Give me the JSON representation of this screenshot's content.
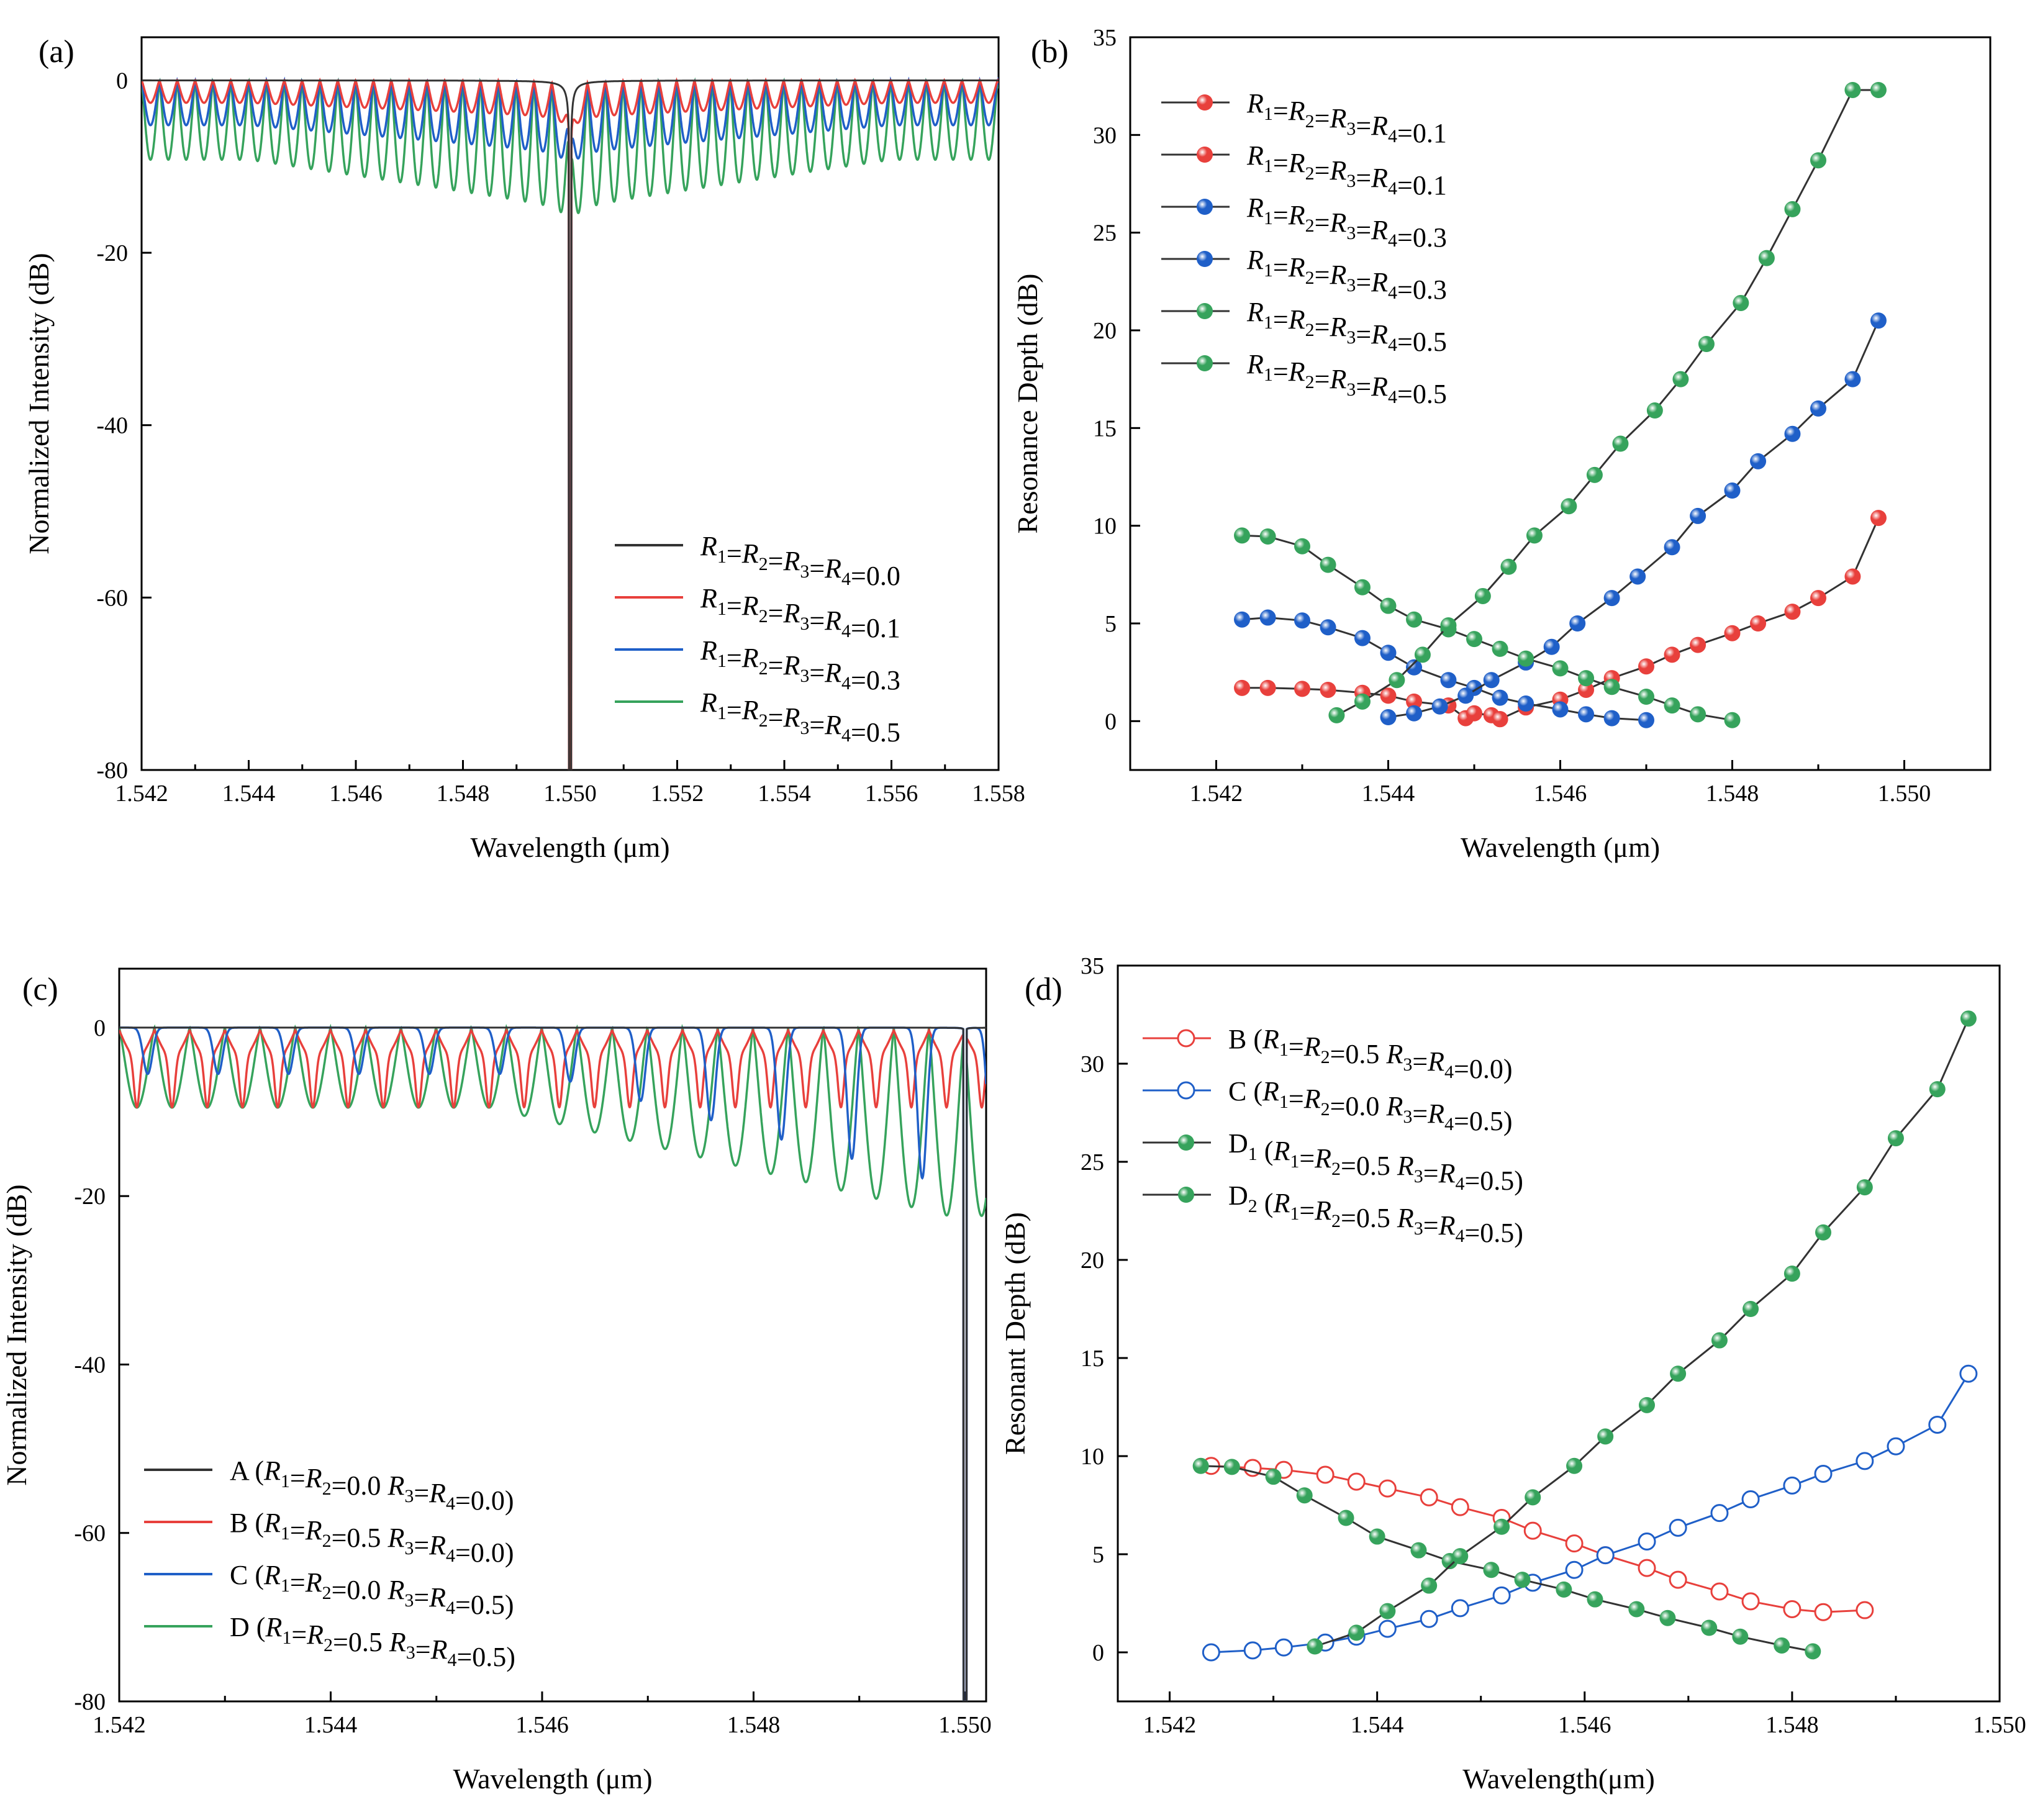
{
  "chart_data": [
    {
      "panel": "(a)",
      "type": "line",
      "xlabel": "Wavelength (μm)",
      "ylabel": "Normalized Intensity (dB)",
      "xlim": [
        1.542,
        1.558
      ],
      "ylim": [
        -80,
        5
      ],
      "xticks": [
        1.542,
        1.544,
        1.546,
        1.548,
        1.55,
        1.552,
        1.554,
        1.556,
        1.558
      ],
      "xtick_labels": [
        "1.542",
        "1.544",
        "1.546",
        "1.548",
        "1.550",
        "1.552",
        "1.554",
        "1.556",
        "1.558"
      ],
      "yticks": [
        0,
        -20,
        -40,
        -60,
        -80
      ],
      "ytick_labels": [
        "0",
        "-20",
        "-40",
        "-60",
        "-80"
      ],
      "legend_position": "lower-right",
      "center": 1.55,
      "series": [
        {
          "name": "R1=R2=R3=R4=0.0",
          "R": 0.0,
          "color": "#333333",
          "period": 0.0
        },
        {
          "name": "R1=R2=R3=R4=0.1",
          "R": 0.1,
          "color": "#e8403c",
          "period": 0.000333
        },
        {
          "name": "R1=R2=R3=R4=0.3",
          "R": 0.3,
          "color": "#1f5fc8",
          "period": 0.000333
        },
        {
          "name": "R1=R2=R3=R4=0.5",
          "R": 0.5,
          "color": "#36a35c",
          "period": 0.000333
        }
      ]
    },
    {
      "panel": "(b)",
      "type": "scatter",
      "xlabel": "Wavelength (μm)",
      "ylabel": "Resonance Depth (dB)",
      "xlim": [
        1.541,
        1.551
      ],
      "ylim": [
        -2.5,
        35
      ],
      "xticks": [
        1.542,
        1.544,
        1.546,
        1.548,
        1.55
      ],
      "xtick_labels": [
        "1.542",
        "1.544",
        "1.546",
        "1.548",
        "1.550"
      ],
      "yticks": [
        0,
        5,
        10,
        15,
        20,
        25,
        30,
        35
      ],
      "ytick_labels": [
        "0",
        "5",
        "10",
        "15",
        "20",
        "25",
        "30",
        "35"
      ],
      "legend_position": "top-left",
      "series": [
        {
          "name": "R1=R2=R3=R4=0.1",
          "color": "#e8403c",
          "x": [
            1.5423,
            1.5426,
            1.543,
            1.5433,
            1.5437,
            1.544,
            1.5443,
            1.5447,
            1.5449,
            1.545,
            1.5452,
            1.5453
          ],
          "y": [
            1.7,
            1.7,
            1.65,
            1.6,
            1.45,
            1.3,
            1.0,
            0.8,
            0.15,
            0.4,
            0.3,
            0.1
          ]
        },
        {
          "name": "R1=R2=R3=R4=0.1",
          "color": "#e8403c",
          "x": [
            1.5453,
            1.5456,
            1.546,
            1.5463,
            1.5466,
            1.547,
            1.5473,
            1.5476,
            1.548,
            1.5483,
            1.5487,
            1.549,
            1.5494,
            1.5497
          ],
          "y": [
            0.1,
            0.7,
            1.1,
            1.6,
            2.2,
            2.8,
            3.4,
            3.9,
            4.5,
            5.0,
            5.6,
            6.3,
            7.4,
            10.4
          ]
        },
        {
          "name": "R1=R2=R3=R4=0.3",
          "color": "#1f5fc8",
          "x": [
            1.5423,
            1.5426,
            1.543,
            1.5433,
            1.5437,
            1.544,
            1.5443,
            1.5447,
            1.545,
            1.5453,
            1.5456,
            1.546,
            1.5463,
            1.5466,
            1.547
          ],
          "y": [
            5.2,
            5.3,
            5.15,
            4.8,
            4.25,
            3.5,
            2.75,
            2.1,
            1.7,
            1.2,
            0.9,
            0.6,
            0.35,
            0.15,
            0.05
          ]
        },
        {
          "name": "R1=R2=R3=R4=0.3",
          "color": "#1f5fc8",
          "x": [
            1.544,
            1.5443,
            1.5446,
            1.5449,
            1.5452,
            1.5456,
            1.5459,
            1.5462,
            1.5466,
            1.5469,
            1.5473,
            1.5476,
            1.548,
            1.5483,
            1.5487,
            1.549,
            1.5494,
            1.5497
          ],
          "y": [
            0.2,
            0.4,
            0.75,
            1.3,
            2.1,
            3.0,
            3.8,
            5.0,
            6.3,
            7.4,
            8.9,
            10.5,
            11.8,
            13.3,
            14.7,
            16.0,
            17.5,
            20.5
          ]
        },
        {
          "name": "R1=R2=R3=R4=0.5",
          "color": "#36a35c",
          "x": [
            1.5423,
            1.5426,
            1.543,
            1.5433,
            1.5437,
            1.544,
            1.5443,
            1.5447,
            1.545,
            1.5453,
            1.5456,
            1.546,
            1.5463,
            1.5466,
            1.547,
            1.5473,
            1.5476,
            1.548
          ],
          "y": [
            9.5,
            9.45,
            8.95,
            8.0,
            6.85,
            5.9,
            5.2,
            4.7,
            4.2,
            3.7,
            3.2,
            2.7,
            2.2,
            1.75,
            1.25,
            0.8,
            0.35,
            0.05
          ]
        },
        {
          "name": "R1=R2=R3=R4=0.5",
          "color": "#36a35c",
          "x": [
            1.5434,
            1.5437,
            1.5441,
            1.5444,
            1.5447,
            1.5451,
            1.5454,
            1.5457,
            1.5461,
            1.5464,
            1.5467,
            1.5471,
            1.5474,
            1.5477,
            1.5481,
            1.5484,
            1.5487,
            1.549,
            1.5494,
            1.5497
          ],
          "y": [
            0.3,
            1.0,
            2.1,
            3.4,
            4.9,
            6.4,
            7.9,
            9.5,
            11.0,
            12.6,
            14.2,
            15.9,
            17.5,
            19.3,
            21.4,
            23.7,
            26.2,
            28.7,
            32.3,
            32.3
          ]
        }
      ]
    },
    {
      "panel": "(c)",
      "type": "line",
      "xlabel": "Wavelength (μm)",
      "ylabel": "Normalized Intensity (dB)",
      "xlim": [
        1.542,
        1.5502
      ],
      "ylim": [
        -80,
        7
      ],
      "xticks": [
        1.542,
        1.544,
        1.546,
        1.548,
        1.55
      ],
      "xtick_labels": [
        "1.542",
        "1.544",
        "1.546",
        "1.548",
        "1.550"
      ],
      "yticks": [
        0,
        -20,
        -40,
        -60,
        -80
      ],
      "ytick_labels": [
        "0",
        "-20",
        "-40",
        "-60",
        "-80"
      ],
      "legend_position": "lower-left",
      "center": 1.55,
      "series": [
        {
          "name": "A (R1=R2=0.0 R3=R4=0.0)",
          "color": "#333333"
        },
        {
          "name": "B (R1=R2=0.5 R3=R4=0.0)",
          "color": "#e8403c"
        },
        {
          "name": "C (R1=R2=0.0 R3=R4=0.5)",
          "color": "#1f5fc8"
        },
        {
          "name": "D (R1=R2=0.5 R3=R4=0.5)",
          "color": "#36a35c"
        }
      ]
    },
    {
      "panel": "(d)",
      "type": "scatter",
      "xlabel": "Wavelength(μm)",
      "ylabel": "Resonant Depth (dB)",
      "xlim": [
        1.5415,
        1.55
      ],
      "ylim": [
        -2.5,
        35
      ],
      "xticks": [
        1.542,
        1.544,
        1.546,
        1.548,
        1.55
      ],
      "xtick_labels": [
        "1.542",
        "1.544",
        "1.546",
        "1.548",
        "1.550"
      ],
      "yticks": [
        0,
        5,
        10,
        15,
        20,
        25,
        30,
        35
      ],
      "ytick_labels": [
        "0",
        "5",
        "10",
        "15",
        "20",
        "25",
        "30",
        "35"
      ],
      "legend_position": "top-left",
      "series": [
        {
          "name": "B (R1=R2=0.5 R3=R4=0.0)",
          "color": "#e8403c",
          "marker": "open",
          "x": [
            1.5424,
            1.5428,
            1.5431,
            1.5435,
            1.5438,
            1.5441,
            1.5445,
            1.5448,
            1.5452,
            1.5455,
            1.5459,
            1.5462,
            1.5466,
            1.5469,
            1.5473,
            1.5476,
            1.548,
            1.5483,
            1.5487
          ],
          "y": [
            9.5,
            9.4,
            9.3,
            9.05,
            8.7,
            8.35,
            7.9,
            7.4,
            6.85,
            6.2,
            5.55,
            4.95,
            4.3,
            3.7,
            3.1,
            2.6,
            2.2,
            2.05,
            2.15
          ]
        },
        {
          "name": "C (R1=R2=0.0 R3=R4=0.5)",
          "color": "#1f5fc8",
          "marker": "open",
          "x": [
            1.5424,
            1.5428,
            1.5431,
            1.5435,
            1.5438,
            1.5441,
            1.5445,
            1.5448,
            1.5452,
            1.5455,
            1.5459,
            1.5462,
            1.5466,
            1.5469,
            1.5473,
            1.5476,
            1.548,
            1.5483,
            1.5487,
            1.549,
            1.5494,
            1.5497
          ],
          "y": [
            0.0,
            0.1,
            0.25,
            0.5,
            0.8,
            1.2,
            1.7,
            2.25,
            2.9,
            3.55,
            4.2,
            4.95,
            5.65,
            6.35,
            7.1,
            7.8,
            8.5,
            9.1,
            9.75,
            10.5,
            11.6,
            14.2
          ]
        },
        {
          "name": "D1 (R1=R2=0.5 R3=R4=0.5)",
          "color": "#36a35c",
          "marker": "filled",
          "x": [
            1.5423,
            1.5426,
            1.543,
            1.5433,
            1.5437,
            1.544,
            1.5444,
            1.5447,
            1.5451,
            1.5454,
            1.5458,
            1.5461,
            1.5465,
            1.5468,
            1.5472,
            1.5475,
            1.5479,
            1.5482
          ],
          "y": [
            9.5,
            9.45,
            8.95,
            8.0,
            6.85,
            5.9,
            5.2,
            4.65,
            4.2,
            3.7,
            3.2,
            2.7,
            2.2,
            1.75,
            1.25,
            0.8,
            0.35,
            0.05
          ]
        },
        {
          "name": "D2 (R1=R2=0.5 R3=R4=0.5)",
          "color": "#36a35c",
          "marker": "filled",
          "x": [
            1.5434,
            1.5438,
            1.5441,
            1.5445,
            1.5448,
            1.5452,
            1.5455,
            1.5459,
            1.5462,
            1.5466,
            1.5469,
            1.5473,
            1.5476,
            1.548,
            1.5483,
            1.5487,
            1.549,
            1.5494,
            1.5497
          ],
          "y": [
            0.3,
            1.0,
            2.1,
            3.4,
            4.9,
            6.4,
            7.9,
            9.5,
            11.0,
            12.6,
            14.2,
            15.9,
            17.5,
            19.3,
            21.4,
            23.7,
            26.2,
            28.7,
            32.3
          ]
        }
      ]
    }
  ],
  "legend_labels": {
    "a": [
      "R1=R2=R3=R4=0.0",
      "R1=R2=R3=R4=0.1",
      "R1=R2=R3=R4=0.3",
      "R1=R2=R3=R4=0.5"
    ],
    "b": [
      "R1=R2=R3=R4=0.1",
      "R1=R2=R3=R4=0.1",
      "R1=R2=R3=R4=0.3",
      "R1=R2=R3=R4=0.3",
      "R1=R2=R3=R4=0.5",
      "R1=R2=R3=R4=0.5"
    ],
    "c": [
      "A (R1=R2=0.0 R3=R4=0.0)",
      "B (R1=R2=0.5 R3=R4=0.0)",
      "C (R1=R2=0.0 R3=R4=0.5)",
      "D (R1=R2=0.5 R3=R4=0.5)"
    ],
    "d": [
      "B (R1=R2=0.5 R3=R4=0.0)",
      "C (R1=R2=0.0 R3=R4=0.5)",
      "D1 (R1=R2=0.5 R3=R4=0.5)",
      "D2 (R1=R2=0.5 R3=R4=0.5)"
    ]
  }
}
